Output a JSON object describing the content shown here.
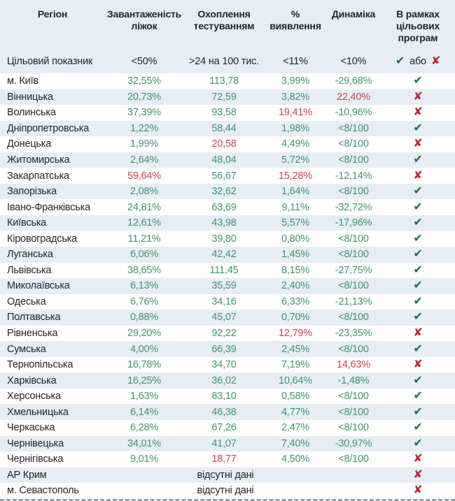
{
  "glyphs": {
    "check": "✔",
    "cross": "✘"
  },
  "colors": {
    "value_green": "#3e966c",
    "value_red": "#d1414f",
    "check_green": "#17713f",
    "cross_red": "#c22433",
    "stripe_blue": "#e6edf5",
    "header_bg": "#e6edf5",
    "text_dark": "#23252b"
  },
  "chart_data": {
    "type": "table",
    "columns": [
      "Регіон",
      "Завантаженість ліжок",
      "Охоплення тестуванням",
      "% виявлення",
      "Динаміка",
      "В рамках цільових програм"
    ],
    "target_row": {
      "label": "Цільовий показник",
      "bed": "<50%",
      "test": ">24 на 100 тис.",
      "det": "<11%",
      "dyn": "<10%",
      "or_label": "або"
    },
    "no_data_label": "відсутні дані",
    "rows": [
      {
        "region": "м. Київ",
        "bed": "32,55%",
        "bed_c": "green",
        "test": "113,78",
        "test_c": "green",
        "det": "3,99%",
        "det_c": "green",
        "dyn": "-29,68%",
        "dyn_c": "green",
        "status": "ok"
      },
      {
        "region": "Вінницька",
        "bed": "20,73%",
        "bed_c": "green",
        "test": "72,59",
        "test_c": "green",
        "det": "3,82%",
        "det_c": "green",
        "dyn": "22,40%",
        "dyn_c": "red",
        "status": "fail"
      },
      {
        "region": "Волинська",
        "bed": "37,39%",
        "bed_c": "green",
        "test": "93,58",
        "test_c": "green",
        "det": "19,41%",
        "det_c": "red",
        "dyn": "-10,96%",
        "dyn_c": "green",
        "status": "fail"
      },
      {
        "region": "Дніпропетровська",
        "bed": "1,22%",
        "bed_c": "green",
        "test": "58,44",
        "test_c": "green",
        "det": "1,98%",
        "det_c": "green",
        "dyn": "<8/100",
        "dyn_c": "green",
        "status": "ok"
      },
      {
        "region": "Донецька",
        "bed": "1,99%",
        "bed_c": "green",
        "test": "20,58",
        "test_c": "red",
        "det": "4,49%",
        "det_c": "green",
        "dyn": "<8/100",
        "dyn_c": "green",
        "status": "fail"
      },
      {
        "region": "Житомирська",
        "bed": "2,64%",
        "bed_c": "green",
        "test": "48,04",
        "test_c": "green",
        "det": "5,72%",
        "det_c": "green",
        "dyn": "<8/100",
        "dyn_c": "green",
        "status": "ok"
      },
      {
        "region": "Закарпатська",
        "bed": "59,64%",
        "bed_c": "red",
        "test": "56,67",
        "test_c": "green",
        "det": "15,28%",
        "det_c": "red",
        "dyn": "-12,14%",
        "dyn_c": "green",
        "status": "fail"
      },
      {
        "region": "Запорізька",
        "bed": "2,08%",
        "bed_c": "green",
        "test": "32,62",
        "test_c": "green",
        "det": "1,64%",
        "det_c": "green",
        "dyn": "<8/100",
        "dyn_c": "green",
        "status": "ok"
      },
      {
        "region": "Івано-Франківська",
        "bed": "24,81%",
        "bed_c": "green",
        "test": "63,69",
        "test_c": "green",
        "det": "9,11%",
        "det_c": "green",
        "dyn": "-32,72%",
        "dyn_c": "green",
        "status": "ok"
      },
      {
        "region": "Київська",
        "bed": "12,61%",
        "bed_c": "green",
        "test": "43,98",
        "test_c": "green",
        "det": "5,57%",
        "det_c": "green",
        "dyn": "-17,96%",
        "dyn_c": "green",
        "status": "ok"
      },
      {
        "region": "Кіровоградська",
        "bed": "11,21%",
        "bed_c": "green",
        "test": "39,80",
        "test_c": "green",
        "det": "0,80%",
        "det_c": "green",
        "dyn": "<8/100",
        "dyn_c": "green",
        "status": "ok"
      },
      {
        "region": "Луганська",
        "bed": "6,06%",
        "bed_c": "green",
        "test": "42,42",
        "test_c": "green",
        "det": "1,45%",
        "det_c": "green",
        "dyn": "<8/100",
        "dyn_c": "green",
        "status": "ok"
      },
      {
        "region": "Львівська",
        "bed": "38,65%",
        "bed_c": "green",
        "test": "111,45",
        "test_c": "green",
        "det": "8,15%",
        "det_c": "green",
        "dyn": "-27,75%",
        "dyn_c": "green",
        "status": "ok"
      },
      {
        "region": "Миколаївська",
        "bed": "6,13%",
        "bed_c": "green",
        "test": "35,59",
        "test_c": "green",
        "det": "2,40%",
        "det_c": "green",
        "dyn": "<8/100",
        "dyn_c": "green",
        "status": "ok"
      },
      {
        "region": "Одеська",
        "bed": "6,76%",
        "bed_c": "green",
        "test": "34,16",
        "test_c": "green",
        "det": "6,33%",
        "det_c": "green",
        "dyn": "-21,13%",
        "dyn_c": "green",
        "status": "ok"
      },
      {
        "region": "Полтавська",
        "bed": "0,88%",
        "bed_c": "green",
        "test": "45,07",
        "test_c": "green",
        "det": "0,70%",
        "det_c": "green",
        "dyn": "<8/100",
        "dyn_c": "green",
        "status": "ok"
      },
      {
        "region": "Рівненська",
        "bed": "29,20%",
        "bed_c": "green",
        "test": "92,22",
        "test_c": "green",
        "det": "12,79%",
        "det_c": "red",
        "dyn": "-23,35%",
        "dyn_c": "green",
        "status": "fail"
      },
      {
        "region": "Сумська",
        "bed": "4,00%",
        "bed_c": "green",
        "test": "66,39",
        "test_c": "green",
        "det": "2,45%",
        "det_c": "green",
        "dyn": "<8/100",
        "dyn_c": "green",
        "status": "ok"
      },
      {
        "region": "Тернопільська",
        "bed": "16,78%",
        "bed_c": "green",
        "test": "34,70",
        "test_c": "green",
        "det": "7,19%",
        "det_c": "green",
        "dyn": "14,63%",
        "dyn_c": "red",
        "status": "fail"
      },
      {
        "region": "Харківська",
        "bed": "16,25%",
        "bed_c": "green",
        "test": "36,02",
        "test_c": "green",
        "det": "10,64%",
        "det_c": "green",
        "dyn": "-1,48%",
        "dyn_c": "green",
        "status": "ok"
      },
      {
        "region": "Херсонська",
        "bed": "1,63%",
        "bed_c": "green",
        "test": "83,10",
        "test_c": "green",
        "det": "0,58%",
        "det_c": "green",
        "dyn": "<8/100",
        "dyn_c": "green",
        "status": "ok"
      },
      {
        "region": "Хмельницька",
        "bed": "6,14%",
        "bed_c": "green",
        "test": "46,38",
        "test_c": "green",
        "det": "4,77%",
        "det_c": "green",
        "dyn": "<8/100",
        "dyn_c": "green",
        "status": "ok"
      },
      {
        "region": "Черкаська",
        "bed": "6,28%",
        "bed_c": "green",
        "test": "67,26",
        "test_c": "green",
        "det": "2,47%",
        "det_c": "green",
        "dyn": "<8/100",
        "dyn_c": "green",
        "status": "ok"
      },
      {
        "region": "Чернівецька",
        "bed": "34,01%",
        "bed_c": "green",
        "test": "41,07",
        "test_c": "green",
        "det": "7,40%",
        "det_c": "green",
        "dyn": "-30,97%",
        "dyn_c": "green",
        "status": "ok"
      },
      {
        "region": "Чернігівська",
        "bed": "9,01%",
        "bed_c": "green",
        "test": "18,77",
        "test_c": "red",
        "det": "4,50%",
        "det_c": "green",
        "dyn": "<8/100",
        "dyn_c": "green",
        "status": "fail"
      },
      {
        "region": "АР Крим",
        "no_data": true,
        "status": "fail"
      },
      {
        "region": "м. Севастополь",
        "no_data": true,
        "status": "fail"
      }
    ]
  }
}
